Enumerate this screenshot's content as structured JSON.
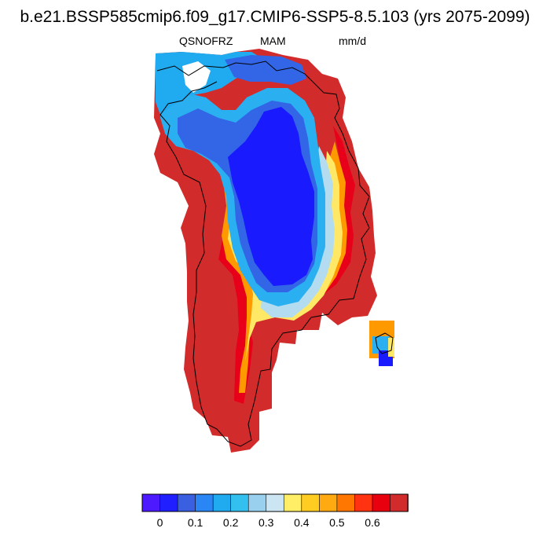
{
  "title": "b.e21.BSSP585cmip6.f09_g17.CMIP6-SSP5-8.5.103 (yrs 2075-2099)",
  "subtitle_left": "QSNOFRZ",
  "subtitle_center": "MAM",
  "subtitle_right": "mm/d",
  "map": {
    "region": "Greenland",
    "land_outline": true,
    "color_classes": {
      "deep_blue": "#1a1aff",
      "blue": "#3366e6",
      "light_blue": "#2ab0f0",
      "pale_blue": "#b3dcf0",
      "yellow": "#ffe866",
      "orange": "#ff9900",
      "red": "#e8001a",
      "brick": "#d22b2b"
    }
  },
  "colorbar": {
    "colors": [
      "#4d1aff",
      "#1f1fff",
      "#3a5fe0",
      "#2a86f5",
      "#20aaf0",
      "#33c0ef",
      "#99d0ee",
      "#cbe6f2",
      "#ffee66",
      "#ffcc22",
      "#ffaa11",
      "#ff7700",
      "#ff3311",
      "#e8000f",
      "#d22b2b"
    ],
    "tick_labels": [
      "0",
      "0.1",
      "0.2",
      "0.3",
      "0.4",
      "0.5",
      "0.6"
    ]
  }
}
